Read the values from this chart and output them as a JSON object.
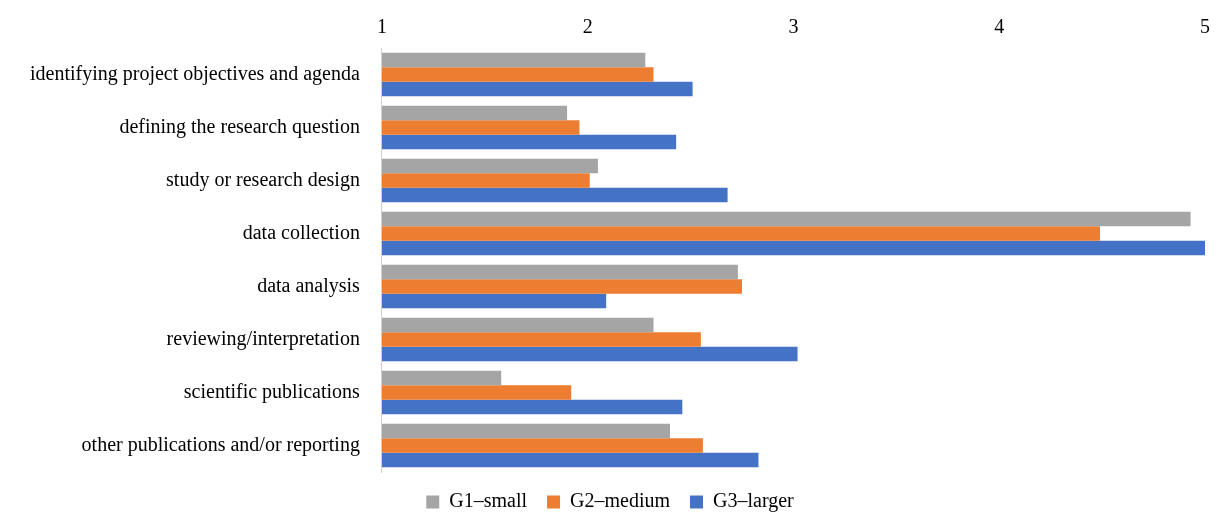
{
  "chart_data": {
    "type": "bar",
    "orientation": "horizontal",
    "categories": [
      "identifying project objectives and agenda",
      "defining the research question",
      "study or research design",
      "data collection",
      "data analysis",
      "reviewing/interpretation",
      "scientific publications",
      "other publications and/or reporting"
    ],
    "series": [
      {
        "name": "G1–small",
        "color": "#a5a5a5",
        "values": [
          2.28,
          1.9,
          2.05,
          4.93,
          2.73,
          2.32,
          1.58,
          2.4
        ]
      },
      {
        "name": "G2–medium",
        "color": "#ed7d31",
        "values": [
          2.32,
          1.96,
          2.01,
          4.49,
          2.75,
          2.55,
          1.92,
          2.56
        ]
      },
      {
        "name": "G3–larger",
        "color": "#4472c4",
        "values": [
          2.51,
          2.43,
          2.68,
          5.0,
          2.09,
          3.02,
          2.46,
          2.83
        ]
      }
    ],
    "xlim": [
      1,
      5
    ],
    "xticks": [
      1,
      2,
      3,
      4,
      5
    ],
    "grid": false,
    "legend": "bottom"
  }
}
